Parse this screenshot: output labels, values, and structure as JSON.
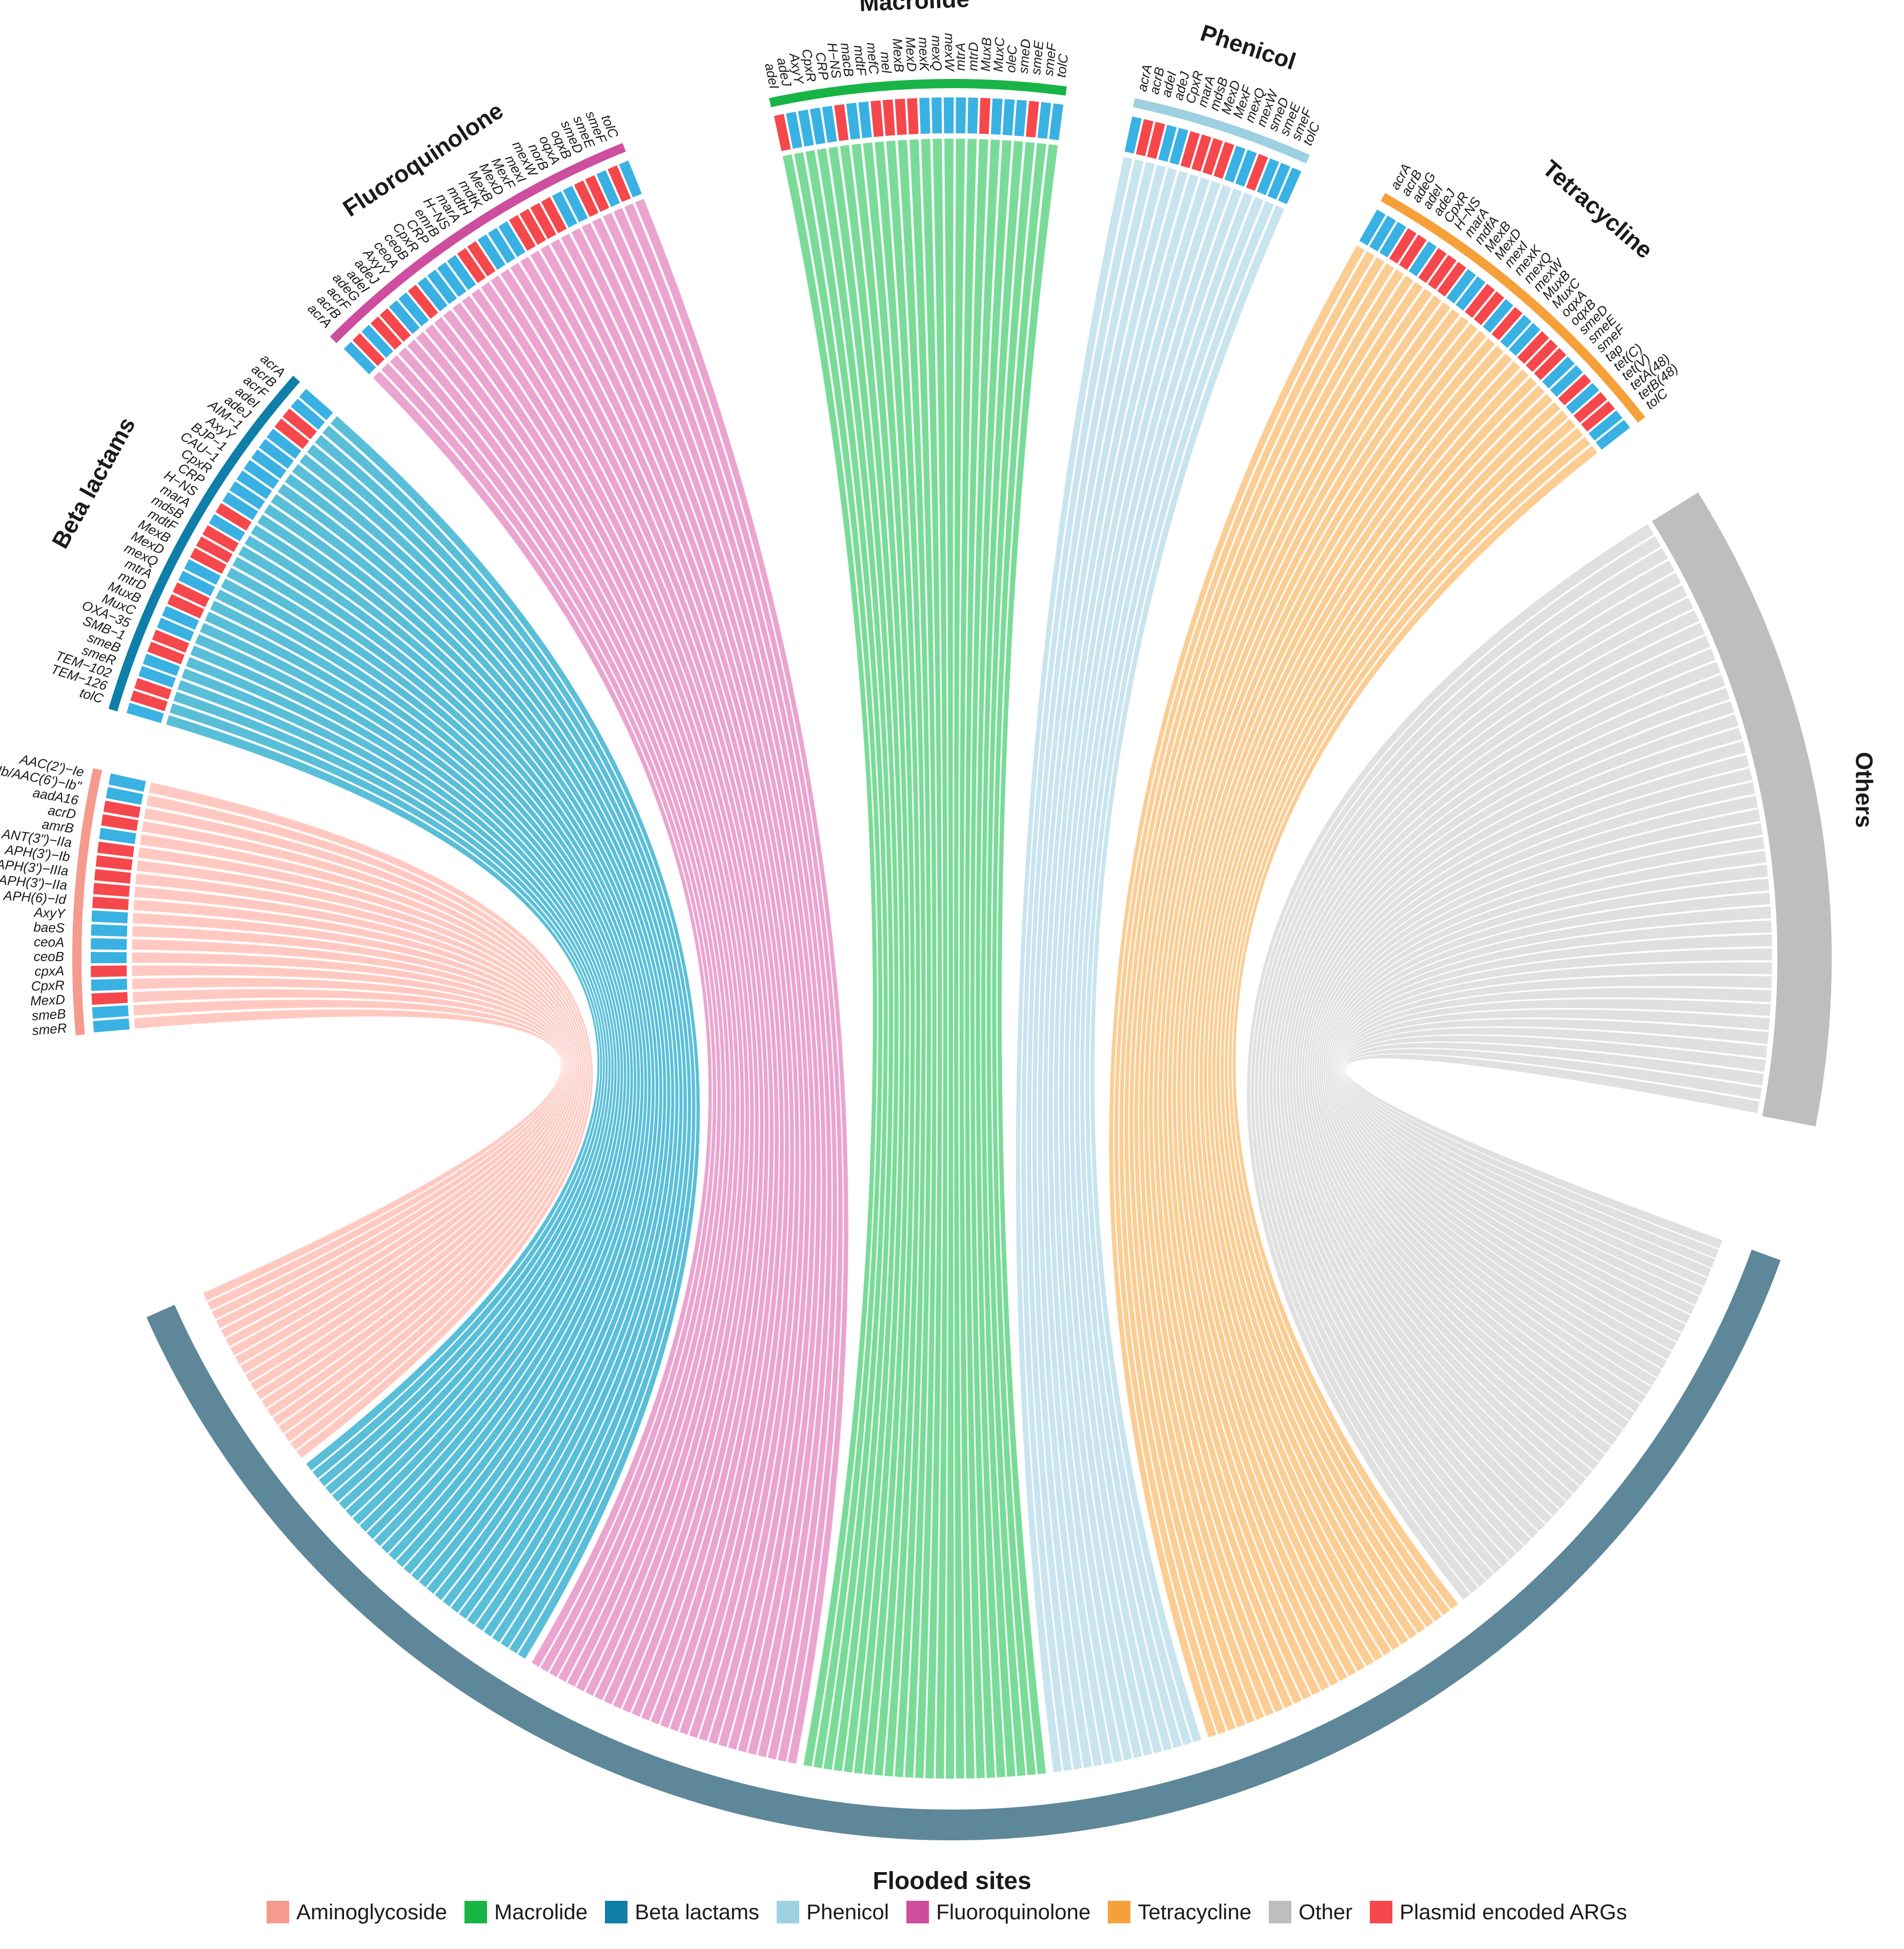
{
  "chart_data": {
    "type": "chord",
    "title": "",
    "target_sector": {
      "name": "Flooded sites",
      "color": "#5E8799"
    },
    "plasmid_color": "#F5484D",
    "chromosomal_color": "#3AB1E3",
    "sectors": [
      {
        "name": "Aminoglycoside",
        "color": "#F59B8D",
        "ribbon_color": "#FFC4BC",
        "genes": [
          "smeR",
          "smeB",
          "MexD",
          "CpxR",
          "cpxA",
          "ceoB",
          "ceoA",
          "baeS",
          "AxyY",
          "APH(6)−Id",
          "APH(3')−IIa",
          "APH(3')−IIIa",
          "APH(3')−Ib",
          "ANT(3\")−IIa",
          "amrB",
          "acrD",
          "aadA16",
          "AAC(3)−Ib/AAC(6')−Ib\"",
          "AAC(2')−Ie"
        ],
        "plasmid": [
          0,
          0,
          1,
          0,
          1,
          0,
          0,
          0,
          0,
          1,
          1,
          1,
          1,
          1,
          0,
          1,
          1,
          0,
          0
        ]
      },
      {
        "name": "Beta lactams",
        "color": "#0F7EA8",
        "ribbon_color": "#4BB8D5",
        "genes": [
          "tolC",
          "TEM−126",
          "TEM−102",
          "smeR",
          "smeB",
          "SMB−1",
          "OXA−35",
          "MuxC",
          "MuxB",
          "mtrD",
          "mtrA",
          "mexQ",
          "MexD",
          "MexB",
          "mdtF",
          "mdsB",
          "marA",
          "H−NS",
          "CRP",
          "CpxR",
          "CAU−1",
          "BJP−1",
          "AxyY",
          "AIM−1",
          "adeJ",
          "adeI",
          "acrF",
          "acrB",
          "acrA"
        ],
        "plasmid": [
          0,
          1,
          1,
          0,
          0,
          1,
          1,
          0,
          0,
          1,
          1,
          0,
          0,
          1,
          1,
          1,
          0,
          1,
          0,
          0,
          0,
          0,
          0,
          0,
          0,
          1,
          1,
          0,
          0
        ]
      },
      {
        "name": "Fluoroquinolone",
        "color": "#CD4D9E",
        "ribbon_color": "#E89CCB",
        "genes": [
          "acrA",
          "acrB",
          "acrF",
          "adeG",
          "adeI",
          "adeJ",
          "AxyY",
          "ceoA",
          "ceoB",
          "CpxR",
          "CRP",
          "emrB",
          "H−NS",
          "marA",
          "mdtH",
          "mdtK",
          "MexB",
          "MexD",
          "MexF",
          "mexI",
          "mexW",
          "norB",
          "oqxA",
          "oqxB",
          "smeD",
          "smeE",
          "smeF",
          "tolC"
        ],
        "plasmid": [
          0,
          1,
          0,
          1,
          1,
          0,
          0,
          1,
          0,
          0,
          0,
          0,
          1,
          1,
          0,
          0,
          0,
          1,
          1,
          1,
          1,
          0,
          0,
          1,
          1,
          0,
          1,
          0
        ]
      },
      {
        "name": "Macrolide",
        "color": "#18B445",
        "ribbon_color": "#6ED88E",
        "genes": [
          "adeI",
          "adeJ",
          "AxyY",
          "CpxR",
          "CRP",
          "H−NS",
          "macB",
          "mdtF",
          "mefC",
          "mel",
          "MexB",
          "MexD",
          "mexK",
          "mexQ",
          "mexW",
          "mtrA",
          "mtrD",
          "MuxB",
          "MuxC",
          "oleC",
          "smeD",
          "smeE",
          "smeF",
          "tolC"
        ],
        "plasmid": [
          1,
          0,
          0,
          0,
          0,
          1,
          0,
          0,
          1,
          1,
          1,
          1,
          0,
          0,
          0,
          0,
          0,
          1,
          0,
          0,
          0,
          1,
          0,
          0
        ]
      },
      {
        "name": "Phenicol",
        "color": "#9DD0E1",
        "ribbon_color": "#C3E2EE",
        "genes": [
          "acrA",
          "acrB",
          "adeI",
          "adeJ",
          "CpxR",
          "marA",
          "mdsB",
          "MexD",
          "MexF",
          "mexQ",
          "mexW",
          "smeD",
          "smeE",
          "smeF",
          "tolC"
        ],
        "plasmid": [
          0,
          1,
          1,
          0,
          0,
          1,
          1,
          1,
          1,
          0,
          0,
          1,
          0,
          0,
          0
        ]
      },
      {
        "name": "Tetracycline",
        "color": "#F6A03A",
        "ribbon_color": "#FBC98A",
        "genes": [
          "acrA",
          "acrB",
          "adeG",
          "adeI",
          "adeJ",
          "CpxR",
          "H−NS",
          "marA",
          "mdfA",
          "MexB",
          "MexD",
          "mexI",
          "mexK",
          "mexQ",
          "mexW",
          "MuxB",
          "MuxC",
          "oqxA",
          "oqxB",
          "smeD",
          "smeE",
          "smeF",
          "tap",
          "tet(C)",
          "tet(V)",
          "tetA(48)",
          "tetB(48)",
          "tolC"
        ],
        "plasmid": [
          0,
          0,
          0,
          1,
          1,
          0,
          1,
          1,
          1,
          0,
          0,
          1,
          1,
          0,
          1,
          0,
          0,
          1,
          1,
          1,
          0,
          0,
          1,
          0,
          1,
          1,
          0,
          0
        ]
      },
      {
        "name": "Others",
        "color": "#BEBEBE",
        "ribbon_color": "#D5D5D5",
        "genes": [],
        "plasmid": []
      }
    ],
    "legend": [
      {
        "label": "Aminoglycoside",
        "color": "#F59B8D"
      },
      {
        "label": "Macrolide",
        "color": "#18B445"
      },
      {
        "label": "Beta lactams",
        "color": "#0F7EA8"
      },
      {
        "label": "Phenicol",
        "color": "#9DD0E1"
      },
      {
        "label": "Fluoroquinolone",
        "color": "#CD4D9E"
      },
      {
        "label": "Tetracycline",
        "color": "#F6A03A"
      },
      {
        "label": "Other",
        "color": "#BEBEBE"
      },
      {
        "label": "Plasmid encoded ARGs",
        "color": "#F5484D"
      }
    ]
  }
}
